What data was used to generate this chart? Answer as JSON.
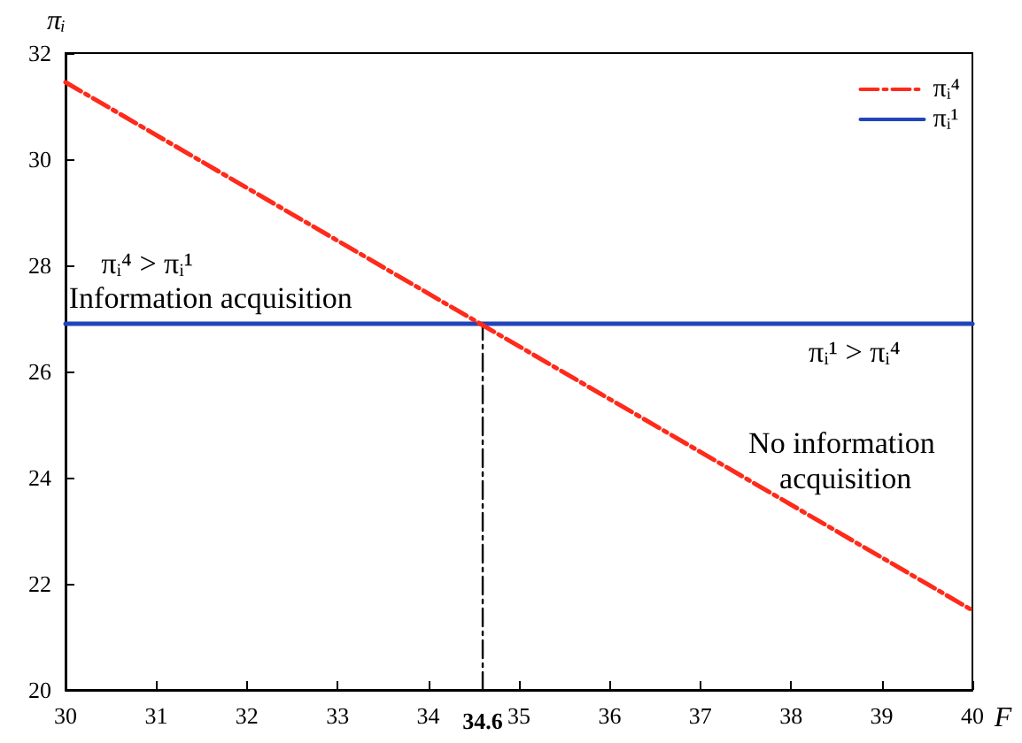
{
  "chart_data": {
    "type": "line",
    "xlabel": "F",
    "ylabel": "πᵢ",
    "xlim": [
      30,
      40
    ],
    "ylim": [
      20,
      32
    ],
    "xticks": [
      30,
      31,
      32,
      33,
      34,
      {
        "value": 34.6,
        "label": "34.6"
      },
      35,
      36,
      37,
      38,
      39,
      40
    ],
    "yticks": [
      20,
      22,
      24,
      26,
      28,
      30,
      32
    ],
    "grid": false,
    "legend": "top right",
    "marker": "none",
    "series": [
      {
        "name": "πᵢ⁴",
        "color": "#ff2a1a",
        "x": [
          30,
          40
        ],
        "values": [
          31.45,
          21.5
        ],
        "line_style": "dashed"
      },
      {
        "name": "πᵢ¹",
        "color": "#2244bb",
        "x": [
          30,
          40
        ],
        "values": [
          26.9,
          26.9
        ],
        "line_style": "solid"
      },
      {
        "color": "#000000",
        "x": [
          34.6,
          34.6
        ],
        "values": [
          20,
          26.9
        ],
        "line_style": "dashed"
      }
    ],
    "annotations": [
      "πᵢ⁴ > πᵢ¹",
      "Information acquisition",
      "πᵢ¹ > πᵢ⁴",
      "No information acquisition"
    ]
  }
}
